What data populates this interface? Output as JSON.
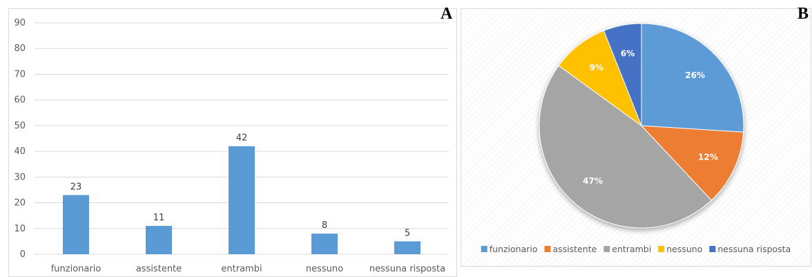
{
  "panels": {
    "left_label": "A",
    "right_label": "B"
  },
  "chart_data": [
    {
      "type": "bar",
      "categories": [
        "funzionario",
        "assistente",
        "entrambi",
        "nessuno",
        "nessuna risposta"
      ],
      "values": [
        23,
        11,
        42,
        8,
        5
      ],
      "ylim": [
        0,
        90
      ],
      "yticks": [
        "0",
        "10",
        "20",
        "30",
        "40",
        "50",
        "60",
        "70",
        "80",
        "90"
      ],
      "data_labels": [
        "23",
        "11",
        "42",
        "8",
        "5"
      ],
      "grid": true,
      "bar_color": "#5b9bd5"
    },
    {
      "type": "pie",
      "labels": [
        "funzionario",
        "assistente",
        "entrambi",
        "nessuno",
        "nessuna risposta"
      ],
      "values": [
        26,
        12,
        47,
        9,
        6
      ],
      "data_labels": [
        "26%",
        "12%",
        "47%",
        "9%",
        "6%"
      ],
      "colors": [
        "#5b9bd5",
        "#ed7d31",
        "#a5a5a5",
        "#ffc000",
        "#4472c4"
      ],
      "legend": "bottom"
    }
  ]
}
